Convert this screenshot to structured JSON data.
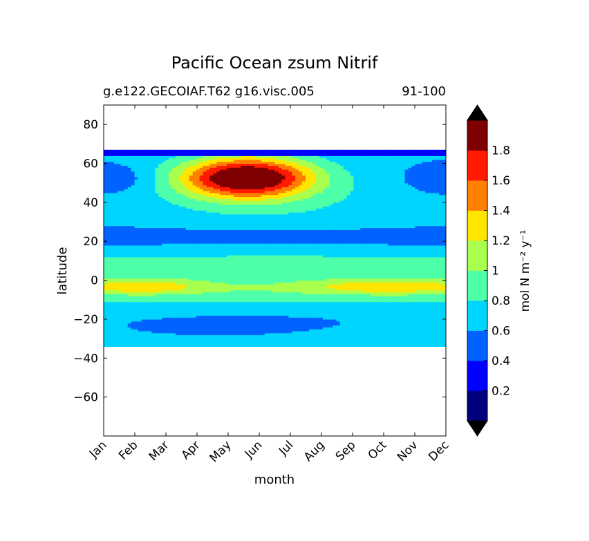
{
  "chart_data": {
    "type": "heatmap",
    "title": "Pacific Ocean zsum Nitrif",
    "subtitle_left": "g.e122.GECOIAF.T62 g16.visc.005",
    "subtitle_right": "91-100",
    "xlabel": "month",
    "ylabel": "latitude",
    "x_categories": [
      "Jan",
      "Feb",
      "Mar",
      "Apr",
      "May",
      "Jun",
      "Jul",
      "Aug",
      "Sep",
      "Oct",
      "Nov",
      "Dec"
    ],
    "y_ticks": [
      80,
      60,
      40,
      20,
      0,
      -20,
      -40,
      -60
    ],
    "ylim": [
      -80,
      90
    ],
    "data_lat_range": [
      -34,
      67
    ],
    "colorbar": {
      "label": "mol N m⁻² y⁻¹",
      "levels": [
        0,
        0.2,
        0.4,
        0.6,
        0.8,
        1.0,
        1.2,
        1.4,
        1.6,
        1.8,
        2.0
      ],
      "tick_labels": [
        "0.2",
        "0.4",
        "0.6",
        "0.8",
        "1",
        "1.2",
        "1.4",
        "1.6",
        "1.8"
      ],
      "colors": [
        "#00007f",
        "#0000ff",
        "#0063ff",
        "#00d5ff",
        "#4effa9",
        "#a9ff4e",
        "#ffe500",
        "#ff7f00",
        "#ff1a00",
        "#7f0000"
      ],
      "extend_low_color": "#000000",
      "extend_high_color": "#000000"
    },
    "colormap": "jet",
    "grid": false
  }
}
